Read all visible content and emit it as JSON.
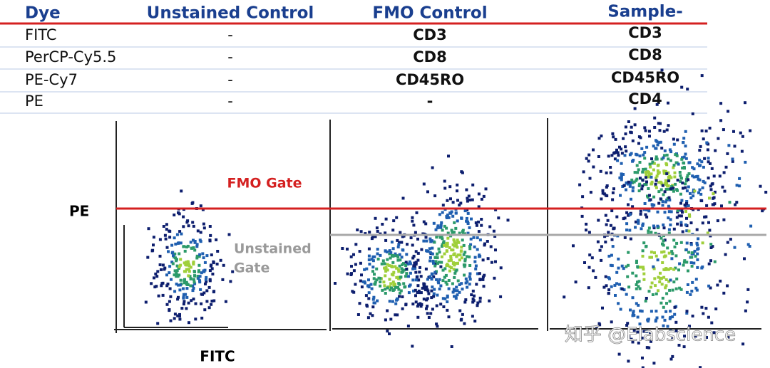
{
  "table": {
    "header": [
      "Dye",
      "Unstained Control",
      "FMO Control",
      "Sample-"
    ],
    "rows": [
      [
        "FITC",
        "-",
        "CD3",
        "CD3"
      ],
      [
        "PerCP-Cy5.5",
        "-",
        "CD8",
        "CD8"
      ],
      [
        "PE-Cy7",
        "-",
        "CD45RO",
        "CD45RO"
      ],
      [
        "PE",
        "-",
        "-",
        "CD4"
      ]
    ]
  },
  "plot": {
    "y_axis_label": "PE",
    "x_axis_label": "FITC",
    "fmo_gate_label": "FMO Gate",
    "unstained_gate_label": [
      "Unstained",
      "Gate"
    ]
  },
  "watermark": "知乎 @Elabscience"
}
